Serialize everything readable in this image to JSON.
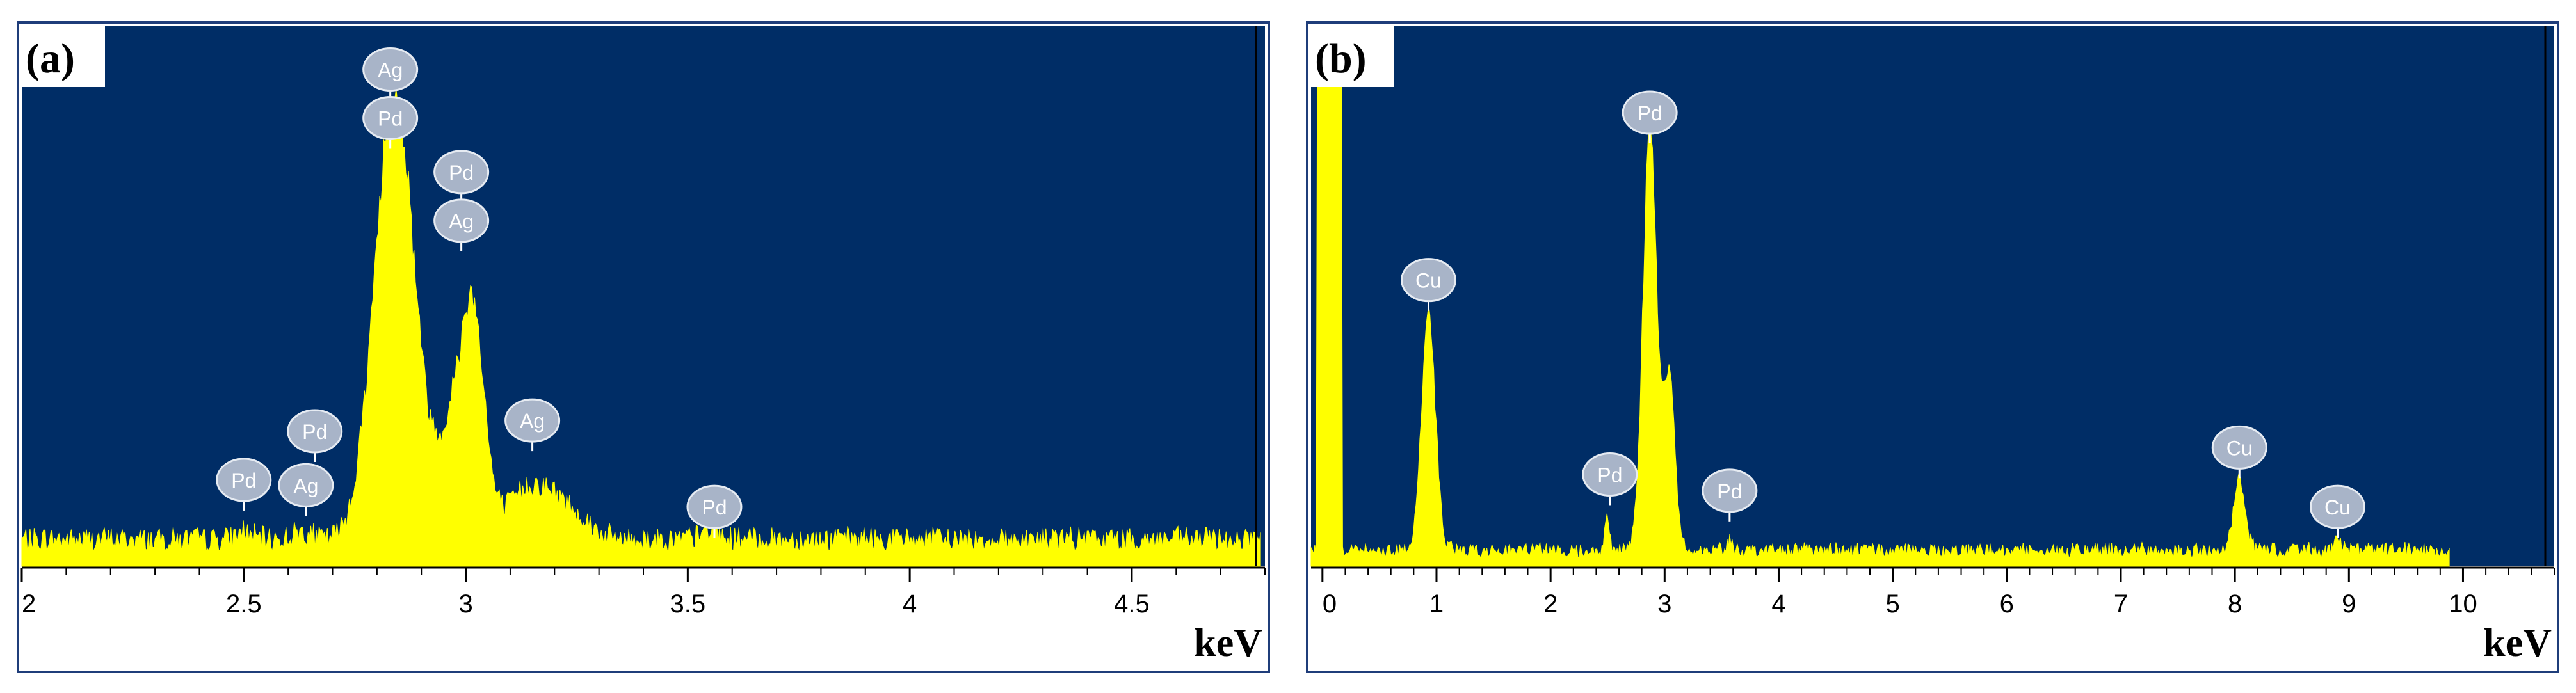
{
  "chart_data": [
    {
      "type": "area",
      "panel_label": "(a)",
      "xlabel": "keV",
      "ylabel": "",
      "xlim": [
        2.0,
        4.8
      ],
      "ylim": [
        0,
        100
      ],
      "x_ticks": [
        2,
        2.5,
        3,
        3.5,
        4,
        4.5
      ],
      "x_tick_labels": [
        "2",
        "2.5",
        "3",
        "3.5",
        "4",
        "4.5"
      ],
      "grid": false,
      "colors": {
        "plot_background": "#002d66",
        "spectrum_fill": "#ffff00",
        "marker_fill": "#a8b4c8",
        "frame": "#1f3d7a"
      },
      "peaks": [
        {
          "center": 2.5,
          "height": 1.5,
          "width": 0.015
        },
        {
          "center": 2.63,
          "height": 1.5,
          "width": 0.02
        },
        {
          "center": 2.84,
          "height": 82,
          "width": 0.045
        },
        {
          "center": 2.99,
          "height": 28,
          "width": 0.04
        },
        {
          "center": 3.02,
          "height": 23,
          "width": 0.022
        },
        {
          "center": 3.15,
          "height": 10,
          "width": 0.05
        },
        {
          "center": 3.24,
          "height": 4,
          "width": 0.04
        },
        {
          "center": 3.55,
          "height": 1.5,
          "width": 0.02
        }
      ],
      "background_level": 5,
      "end_x": 4.79,
      "peak_labels": [
        {
          "label": "Ag",
          "x": 2.83,
          "y": 92
        },
        {
          "label": "Pd",
          "x": 2.83,
          "y": 83
        },
        {
          "label": "Pd",
          "x": 2.99,
          "y": 73
        },
        {
          "label": "Ag",
          "x": 2.99,
          "y": 64
        },
        {
          "label": "Pd",
          "x": 2.5,
          "y": 16
        },
        {
          "label": "Pd",
          "x": 2.66,
          "y": 25
        },
        {
          "label": "Ag",
          "x": 2.64,
          "y": 15
        },
        {
          "label": "Ag",
          "x": 3.15,
          "y": 27
        },
        {
          "label": "Pd",
          "x": 3.56,
          "y": 11
        }
      ]
    },
    {
      "type": "area",
      "panel_label": "(b)",
      "xlabel": "keV",
      "ylabel": "",
      "xlim": [
        -0.1,
        10.8
      ],
      "ylim": [
        0,
        100
      ],
      "x_ticks": [
        0,
        1,
        2,
        3,
        4,
        5,
        6,
        7,
        8,
        9,
        10
      ],
      "x_tick_labels": [
        "0",
        "1",
        "2",
        "3",
        "4",
        "5",
        "6",
        "7",
        "8",
        "9",
        "10"
      ],
      "grid": false,
      "colors": {
        "plot_background": "#002d66",
        "spectrum_fill": "#ffff00",
        "marker_fill": "#a8b4c8",
        "frame": "#1f3d7a"
      },
      "peaks": [
        {
          "center": 0.93,
          "height": 44,
          "width": 0.06
        },
        {
          "center": 2.5,
          "height": 6,
          "width": 0.02
        },
        {
          "center": 2.87,
          "height": 77,
          "width": 0.06
        },
        {
          "center": 3.04,
          "height": 33,
          "width": 0.05
        },
        {
          "center": 3.57,
          "height": 2,
          "width": 0.02
        },
        {
          "center": 8.04,
          "height": 13,
          "width": 0.05
        },
        {
          "center": 8.9,
          "height": 2,
          "width": 0.04
        }
      ],
      "background_level": 3,
      "zero_peak": {
        "x_start": -0.05,
        "x_end": 0.17,
        "height": 100
      },
      "end_x": 9.88,
      "peak_labels": [
        {
          "label": "Cu",
          "x": 0.93,
          "y": 53
        },
        {
          "label": "Pd",
          "x": 2.87,
          "y": 84
        },
        {
          "label": "Pd",
          "x": 2.52,
          "y": 17
        },
        {
          "label": "Pd",
          "x": 3.57,
          "y": 14
        },
        {
          "label": "Cu",
          "x": 8.04,
          "y": 22
        },
        {
          "label": "Cu",
          "x": 8.9,
          "y": 11
        }
      ]
    }
  ]
}
